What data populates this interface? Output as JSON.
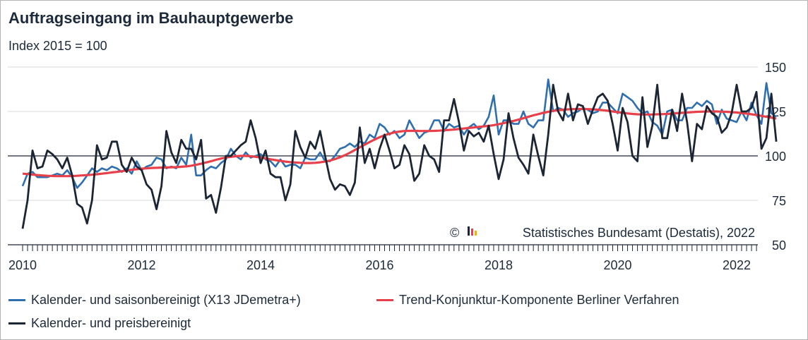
{
  "header": {
    "title": "Auftragseingang im Bauhauptgewerbe",
    "subtitle": "Index 2015 = 100"
  },
  "source": "©   Statistisches Bundesamt (Destatis), 2022",
  "colors": {
    "saison": "#2f6fad",
    "trend": "#e8404a",
    "preis": "#1c2533",
    "grid": "#d9d9d9",
    "refline": "#1c2533",
    "logo": [
      "#1c2533",
      "#e8404a",
      "#f0b400"
    ]
  },
  "chart_data": {
    "type": "line",
    "title": "Auftragseingang im Bauhauptgewerbe",
    "subtitle": "Index 2015 = 100",
    "xlabel": "",
    "ylabel": "",
    "ylim": [
      50,
      150
    ],
    "yticks": [
      50,
      75,
      100,
      125,
      150
    ],
    "xlim": [
      2010,
      2022.42
    ],
    "xticks": [
      2010,
      2012,
      2014,
      2016,
      2018,
      2020,
      2022
    ],
    "reference_line": 100,
    "grid": true,
    "y_axis_position": "right",
    "legend_position": "bottom",
    "x_start": 2010,
    "x_step": 0.08333,
    "series": [
      {
        "name": "Kalender- und saisonbereinigt (X13 JDemetra+)",
        "color": "#2f6fad",
        "values": [
          83,
          90,
          91,
          88,
          88,
          88,
          89,
          90,
          89,
          92,
          88,
          82,
          85,
          89,
          93,
          91,
          93,
          92,
          94,
          93,
          91,
          93,
          90,
          97,
          92,
          94,
          95,
          99,
          98,
          93,
          94,
          93,
          99,
          95,
          112,
          89,
          89,
          92,
          94,
          93,
          96,
          98,
          104,
          100,
          98,
          102,
          99,
          100,
          101,
          98,
          97,
          94,
          98,
          94,
          95,
          95,
          93,
          99,
          98,
          98,
          102,
          97,
          97,
          100,
          104,
          105,
          107,
          105,
          108,
          107,
          112,
          110,
          118,
          116,
          112,
          114,
          110,
          112,
          120,
          115,
          110,
          113,
          114,
          120,
          120,
          114,
          118,
          116,
          117,
          112,
          116,
          118,
          115,
          117,
          122,
          134,
          112,
          120,
          120,
          118,
          118,
          125,
          118,
          116,
          120,
          120,
          143,
          125,
          127,
          126,
          122,
          124,
          125,
          127,
          126,
          124,
          125,
          130,
          130,
          127,
          124,
          135,
          133,
          131,
          127,
          124,
          125,
          119,
          117,
          112,
          125,
          126,
          120,
          120,
          127,
          127,
          130,
          128,
          131,
          129,
          118,
          126,
          121,
          120,
          119,
          125,
          120,
          130,
          123,
          118,
          141,
          124,
          122
        ]
      },
      {
        "name": "Trend-Konjunktur-Komponente Berliner Verfahren",
        "color": "#e8404a",
        "values": [
          90,
          89.8,
          89.5,
          89.2,
          89,
          88.8,
          88.7,
          88.6,
          88.6,
          88.6,
          88.7,
          88.8,
          89,
          89.2,
          89.4,
          89.7,
          90,
          90.3,
          90.7,
          91,
          91.4,
          91.8,
          92.2,
          92.5,
          92.8,
          93,
          93.2,
          93.3,
          93.4,
          93.5,
          93.6,
          93.7,
          93.9,
          94.1,
          94.5,
          95,
          95.6,
          96.3,
          97,
          97.8,
          98.5,
          99.1,
          99.5,
          99.8,
          100,
          100,
          99.8,
          99.5,
          99.1,
          98.6,
          98.1,
          97.6,
          97.2,
          96.8,
          96.5,
          96.3,
          96.1,
          96,
          96,
          96.1,
          96.4,
          96.8,
          97.4,
          98.2,
          99.2,
          100.4,
          101.8,
          103.3,
          104.8,
          106.3,
          107.8,
          109.2,
          110.5,
          111.6,
          112.5,
          113.2,
          113.7,
          114,
          114.1,
          114.1,
          114,
          114,
          114,
          114.1,
          114.2,
          114.4,
          114.6,
          114.8,
          115.1,
          115.4,
          115.7,
          116,
          116.3,
          116.6,
          116.9,
          117.3,
          117.8,
          118.4,
          119,
          119.7,
          120.4,
          121.2,
          122,
          122.8,
          123.5,
          124.2,
          124.8,
          125.3,
          125.7,
          126,
          126.2,
          126.3,
          126.4,
          126.4,
          126.3,
          126.2,
          126,
          125.7,
          125.4,
          125,
          124.6,
          124.2,
          123.9,
          123.6,
          123.4,
          123.3,
          123.3,
          123.3,
          123.4,
          123.5,
          123.6,
          123.8,
          124,
          124.2,
          124.4,
          124.6,
          124.8,
          124.9,
          125,
          125,
          125,
          124.9,
          124.8,
          124.6,
          124.4,
          124.1,
          123.8,
          123.4,
          123,
          122.5,
          122,
          121.5,
          121
        ]
      },
      {
        "name": "Kalender- und preisbereinigt",
        "color": "#1c2533",
        "values": [
          59,
          75,
          103,
          93,
          94,
          103,
          101,
          98,
          93,
          99,
          89,
          73,
          71,
          62,
          75,
          106,
          98,
          99,
          108,
          108,
          95,
          91,
          99,
          94,
          92,
          84,
          81,
          70,
          83,
          114,
          102,
          96,
          109,
          104,
          104,
          98,
          109,
          76,
          78,
          68,
          82,
          100,
          100,
          103,
          106,
          108,
          120,
          110,
          96,
          103,
          90,
          88,
          88,
          75,
          84,
          114,
          105,
          99,
          108,
          104,
          114,
          100,
          87,
          81,
          84,
          83,
          78,
          85,
          116,
          96,
          104,
          93,
          104,
          112,
          103,
          93,
          95,
          106,
          101,
          86,
          90,
          106,
          100,
          98,
          91,
          120,
          120,
          132,
          119,
          103,
          114,
          111,
          113,
          108,
          117,
          101,
          87,
          98,
          124,
          110,
          99,
          95,
          90,
          112,
          100,
          89,
          112,
          140,
          125,
          120,
          135,
          120,
          129,
          128,
          118,
          126,
          133,
          135,
          131,
          118,
          103,
          127,
          119,
          100,
          97,
          133,
          105,
          117,
          140,
          110,
          110,
          126,
          114,
          135,
          119,
          97,
          118,
          115,
          128,
          124,
          122,
          113,
          116,
          124,
          140,
          125,
          125,
          127,
          136,
          104,
          110,
          135,
          108
        ]
      }
    ]
  }
}
